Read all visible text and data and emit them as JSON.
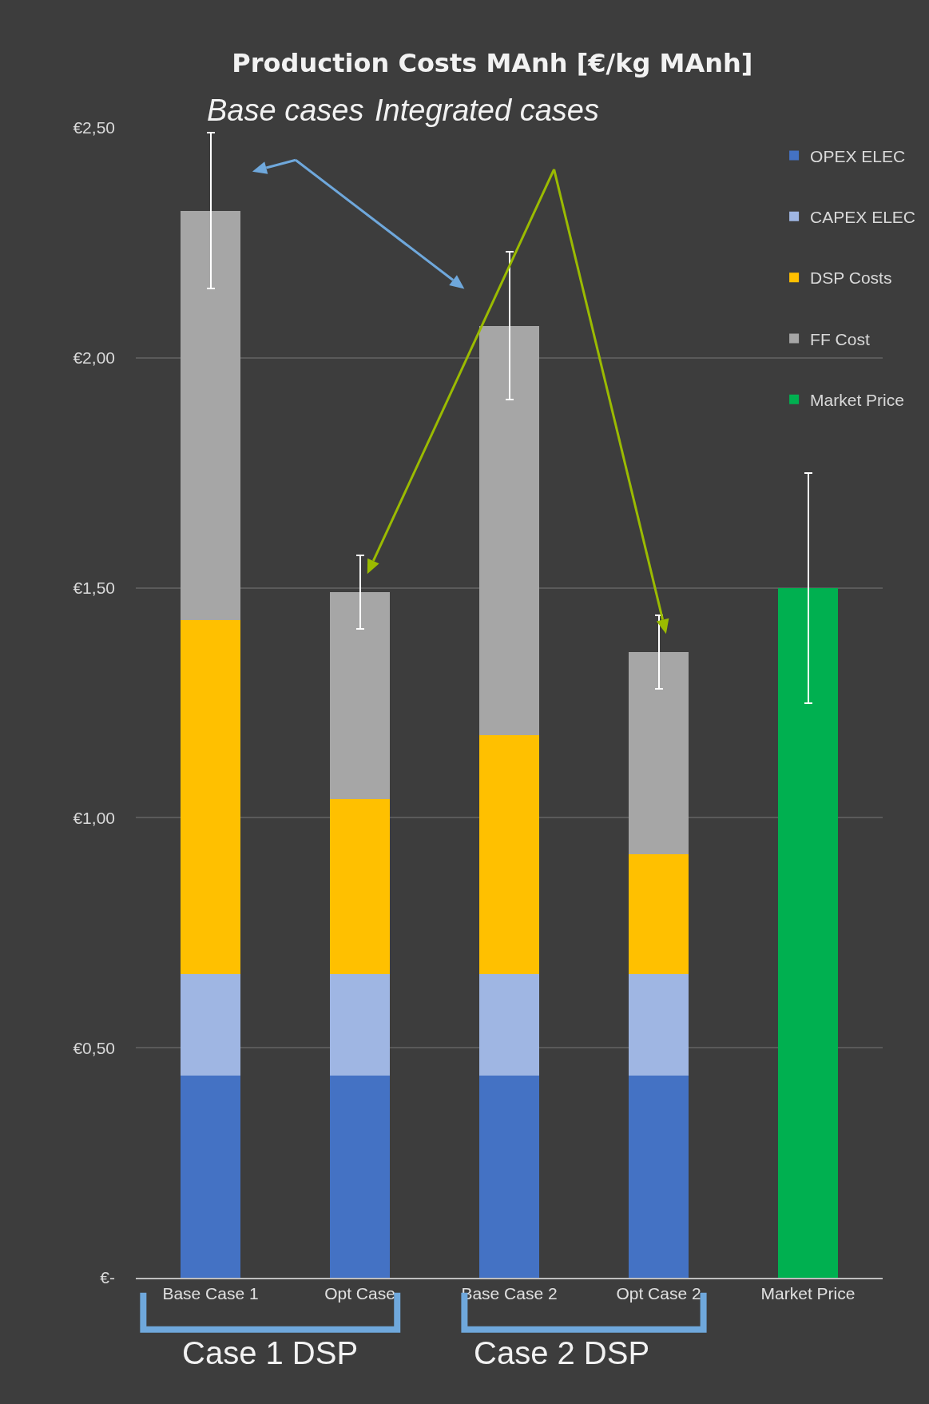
{
  "chart_data": {
    "type": "bar",
    "title": "Production Costs MAnh [€/kg MAnh]",
    "categories": [
      "Base Case 1",
      "Opt Case",
      "Base Case 2",
      "Opt Case 2",
      "Market Price"
    ],
    "stacked": true,
    "series": [
      {
        "name": "OPEX ELEC",
        "color": "#4472c4",
        "values": [
          0.44,
          0.44,
          0.44,
          0.44,
          null
        ]
      },
      {
        "name": "CAPEX ELEC",
        "color": "#9fb6e3",
        "values": [
          0.22,
          0.22,
          0.22,
          0.22,
          null
        ]
      },
      {
        "name": "DSP Costs",
        "color": "#ffc000",
        "values": [
          0.77,
          0.38,
          0.52,
          0.26,
          null
        ]
      },
      {
        "name": "FF Cost",
        "color": "#a6a6a6",
        "values": [
          0.89,
          0.45,
          0.89,
          0.44,
          null
        ],
        "errors": [
          0.17,
          0.08,
          0.16,
          0.08,
          null
        ]
      },
      {
        "name": "Market Price",
        "color": "#00b050",
        "values": [
          null,
          null,
          null,
          null,
          1.5
        ],
        "errors": [
          null,
          null,
          null,
          null,
          0.25
        ]
      }
    ],
    "ylim": [
      0,
      2.5
    ],
    "yticks": [
      {
        "value": 0,
        "label": "€-"
      },
      {
        "value": 0.5,
        "label": "€0,50"
      },
      {
        "value": 1,
        "label": "€1,00"
      },
      {
        "value": 1.5,
        "label": "€1,50"
      },
      {
        "value": 2,
        "label": "€2,00"
      },
      {
        "value": 2.5,
        "label": "€2,50"
      }
    ],
    "grid": "y",
    "legend": "top right",
    "annotations": [
      "Base cases",
      "Integrated cases",
      "Case 1 DSP",
      "Case 2 DSP"
    ]
  }
}
